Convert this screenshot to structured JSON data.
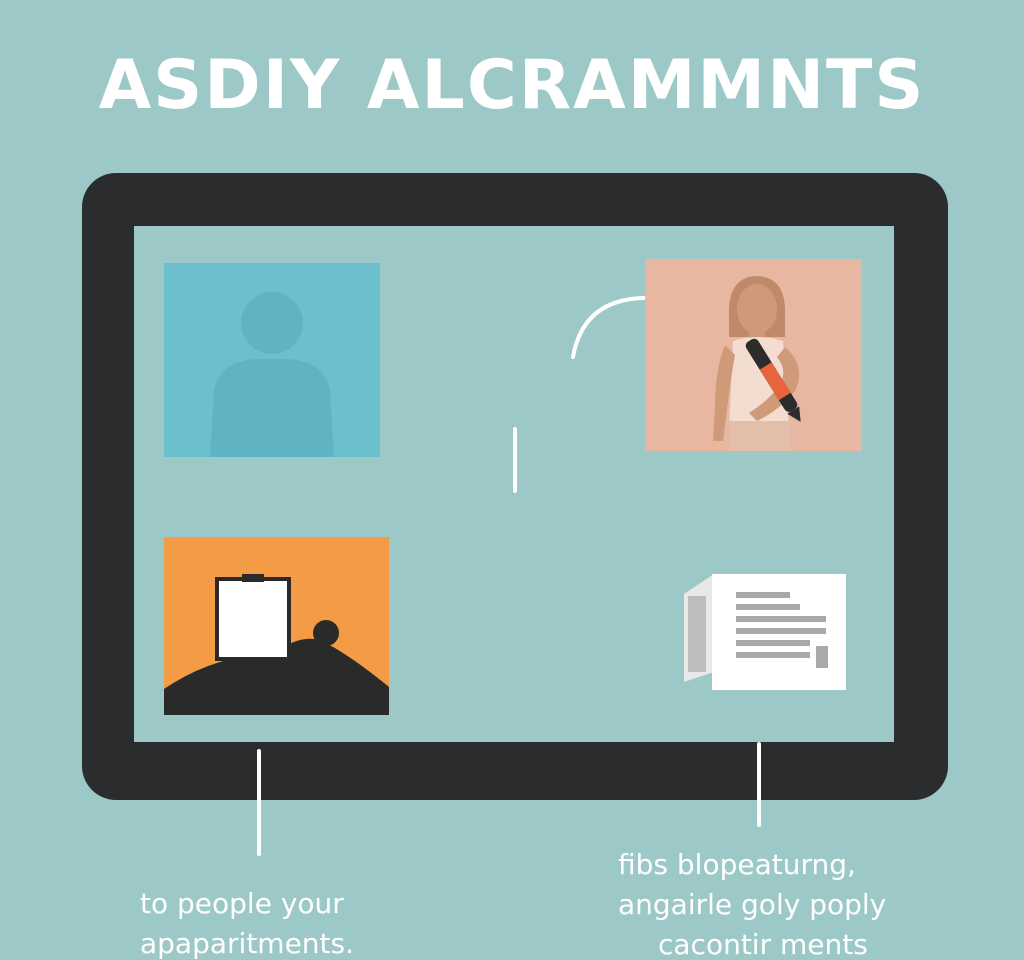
{
  "headline": "ASDIY ALCRAMMNTS",
  "captions": {
    "left": [
      "to people your",
      "apaparitments."
    ],
    "right": [
      "fibs blopeaturng,",
      "angairle goly poply",
      "cacontir ments"
    ]
  },
  "icons": {
    "person_card": "person-silhouette-icon",
    "woman_card": "woman-with-pen-icon",
    "easel_card": "easel-landscape-icon",
    "document": "document-lines-icon",
    "arrow": "curved-arrow-icon"
  },
  "colors": {
    "background": "#9cc9c7",
    "frame": "#2a2c2d",
    "person_card": "#6cbfcc",
    "woman_card": "#e8b7a1",
    "easel_card": "#f49b45",
    "text": "#ffffff"
  }
}
